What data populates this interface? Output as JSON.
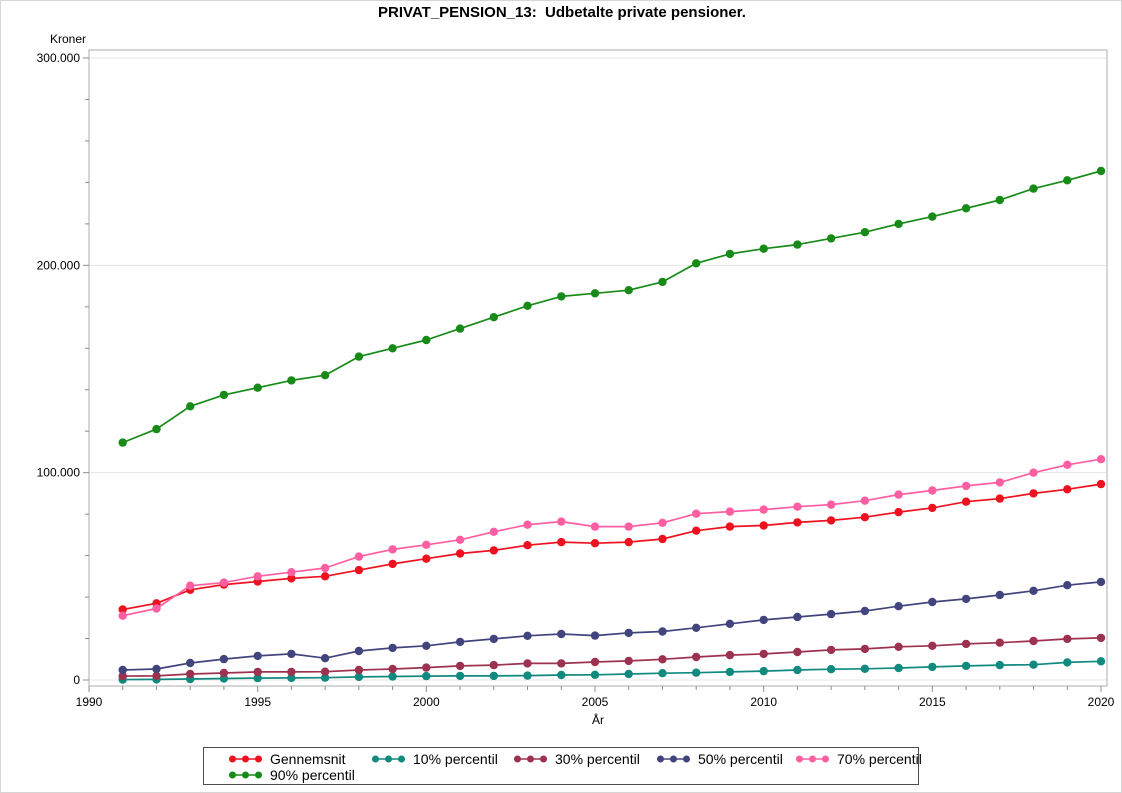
{
  "figure": {
    "title": "PRIVAT_PENSION_13:  Udbetalte private pensioner."
  },
  "chart_data": {
    "type": "line",
    "title": "PRIVAT_PENSION_13:  Udbetalte private pensioner.",
    "xlabel": "År",
    "ylabel": "Kroner",
    "xlim": [
      1990,
      2020
    ],
    "ylim": [
      0,
      300000
    ],
    "grid": "horizontal-major-only",
    "legend_position": "bottom",
    "x_major_ticks": [
      1990,
      1995,
      2000,
      2005,
      2010,
      2015,
      2020
    ],
    "x_tick_labels": [
      "1990",
      "1995",
      "2000",
      "2005",
      "2010",
      "2015",
      "2020"
    ],
    "x_minor_step": 1,
    "y_major_ticks": [
      0,
      100000,
      200000,
      300000
    ],
    "y_tick_labels": [
      "0",
      "100.000",
      "200.000",
      "300.000"
    ],
    "y_minor_step": 20000,
    "x": [
      1991,
      1992,
      1993,
      1994,
      1995,
      1996,
      1997,
      1998,
      1999,
      2000,
      2001,
      2002,
      2003,
      2004,
      2005,
      2006,
      2007,
      2008,
      2009,
      2010,
      2011,
      2012,
      2013,
      2014,
      2015,
      2016,
      2017,
      2018,
      2019,
      2020
    ],
    "series": [
      {
        "name": "Gennemsnit",
        "color": "#ee1220",
        "values": [
          34000,
          37000,
          43500,
          46000,
          47500,
          49000,
          50000,
          53000,
          56000,
          58500,
          61000,
          62500,
          65000,
          66500,
          66000,
          66500,
          68000,
          72000,
          74000,
          74500,
          76000,
          77000,
          78500,
          81000,
          83000,
          86000,
          87500,
          90000,
          92000,
          94500
        ]
      },
      {
        "name": "10% percentil",
        "color": "#10897f",
        "values": [
          200,
          300,
          500,
          700,
          900,
          1000,
          1100,
          1500,
          1700,
          1900,
          2000,
          2000,
          2100,
          2400,
          2500,
          2900,
          3300,
          3500,
          3900,
          4300,
          4800,
          5200,
          5400,
          5800,
          6300,
          6800,
          7200,
          7400,
          8500,
          9000
        ]
      },
      {
        "name": "30% percentil",
        "color": "#9d3150",
        "values": [
          1900,
          2000,
          2900,
          3400,
          3900,
          3900,
          4000,
          4800,
          5300,
          6000,
          6800,
          7200,
          8000,
          8000,
          8700,
          9200,
          10000,
          11100,
          12000,
          12600,
          13500,
          14500,
          15000,
          16000,
          16500,
          17400,
          18000,
          18800,
          19800,
          20300
        ]
      },
      {
        "name": "50% percentil",
        "color": "#42447e",
        "values": [
          4800,
          5300,
          8200,
          10100,
          11600,
          12600,
          10500,
          14000,
          15500,
          16500,
          18400,
          19800,
          21300,
          22200,
          21400,
          22700,
          23400,
          25200,
          27100,
          29000,
          30400,
          31800,
          33300,
          35600,
          37600,
          39100,
          41000,
          43000,
          45700,
          47300
        ]
      },
      {
        "name": "70% percentil",
        "color": "#ff5fa2",
        "values": [
          31000,
          34500,
          45500,
          47000,
          50000,
          52000,
          54000,
          59500,
          63000,
          65200,
          67600,
          71500,
          74900,
          76400,
          74000,
          74000,
          75800,
          80200,
          81200,
          82200,
          83600,
          84600,
          86500,
          89400,
          91400,
          93600,
          95300,
          100000,
          103800,
          106500
        ]
      },
      {
        "name": "90% percentil",
        "color": "#188a18",
        "values": [
          114500,
          121000,
          132000,
          137500,
          141000,
          144500,
          147000,
          156000,
          160000,
          164000,
          169500,
          175000,
          180500,
          185000,
          186500,
          188000,
          192000,
          201000,
          205500,
          208000,
          210000,
          213000,
          216000,
          220000,
          223500,
          227500,
          231500,
          237000,
          241000,
          245500
        ]
      }
    ]
  },
  "style_colors": {
    "gridline": "#e5e5e5",
    "frame": "#aeaeae",
    "tick": "#8c8c8c",
    "text": "#000000",
    "legend_border": "#4d4d4d"
  }
}
